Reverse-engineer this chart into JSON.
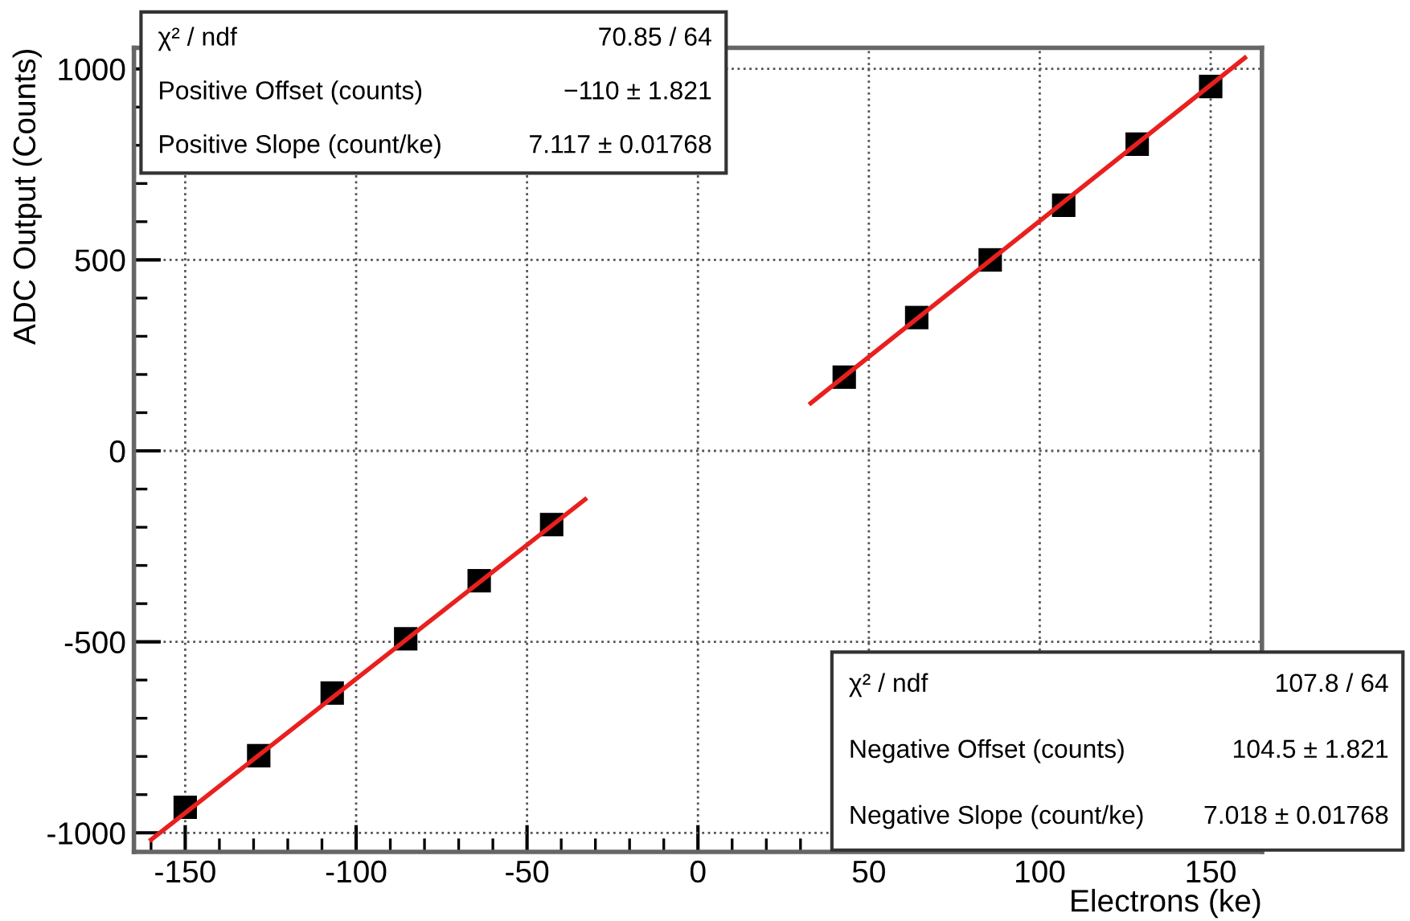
{
  "chart_data": {
    "type": "scatter",
    "xlabel": "Electrons (ke)",
    "ylabel": "ADC Output (Counts)",
    "xlim": [
      -165,
      165
    ],
    "ylim": [
      -1050,
      1055
    ],
    "xticks": [
      -150,
      -100,
      -50,
      0,
      50,
      100,
      150
    ],
    "yticks": [
      -1000,
      -500,
      0,
      500,
      1000
    ],
    "grid": true,
    "series": [
      {
        "marker": "square",
        "color": "#000000",
        "x": [
          -150,
          -128.5,
          -107,
          -85.5,
          -64,
          -42.8
        ],
        "values": [
          -933,
          -798,
          -634,
          -492,
          -340,
          -193
        ]
      },
      {
        "marker": "square",
        "color": "#000000",
        "x": [
          42.8,
          64,
          85.5,
          107,
          128.5,
          150
        ],
        "values": [
          193,
          349,
          500,
          643,
          803,
          954
        ]
      },
      {
        "type": "line",
        "color": "#e8201e",
        "x": [
          -160,
          -33
        ],
        "values": [
          -1018,
          -127
        ]
      },
      {
        "type": "line",
        "color": "#e8201e",
        "x": [
          33,
          160
        ],
        "values": [
          125,
          1029
        ]
      }
    ],
    "annotations": [
      "χ² / ndf",
      "70.85 / 64",
      "Positive Offset (counts)",
      "−110 ± 1.821",
      "Positive Slope (count/ke)",
      "7.117 ± 0.01768",
      "χ² / ndf",
      "107.8 / 64",
      "Negative Offset (counts)",
      "104.5 ± 1.821",
      "Negative Slope (count/ke)",
      "7.018 ± 0.01768"
    ]
  }
}
